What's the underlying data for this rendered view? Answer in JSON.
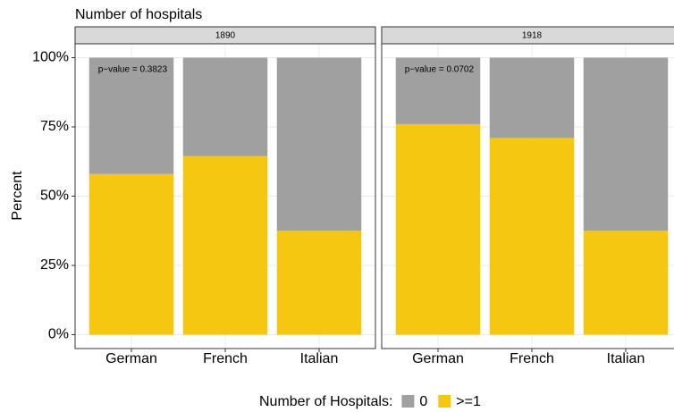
{
  "chart_data": {
    "type": "bar",
    "stacked": true,
    "title": "Number of hospitals",
    "ylabel": "Percent",
    "legend_title": "Number of Hospitals:",
    "legend_position": "bottom",
    "grid": true,
    "categories": [
      "German",
      "French",
      "Italian"
    ],
    "ylim": [
      -5,
      105
    ],
    "yticks": [
      {
        "value": 0,
        "label": "0%"
      },
      {
        "value": 25,
        "label": "25%"
      },
      {
        "value": 50,
        "label": "50%"
      },
      {
        "value": 75,
        "label": "75%"
      },
      {
        "value": 100,
        "label": "100%"
      }
    ],
    "facets": [
      {
        "label": "1890",
        "annotation": "p−value = 0.3823",
        "series": [
          {
            "name": "0",
            "color": "#a0a0a0",
            "values": [
              42,
              35.5,
              62.5
            ]
          },
          {
            "name": ">=1",
            "color": "#f5c710",
            "values": [
              58,
              64.5,
              37.5
            ]
          }
        ]
      },
      {
        "label": "1918",
        "annotation": "p−value = 0.0702",
        "series": [
          {
            "name": "0",
            "color": "#a0a0a0",
            "values": [
              24,
              29,
              62.5
            ]
          },
          {
            "name": ">=1",
            "color": "#f5c710",
            "values": [
              76,
              71,
              37.5
            ]
          }
        ]
      }
    ]
  }
}
